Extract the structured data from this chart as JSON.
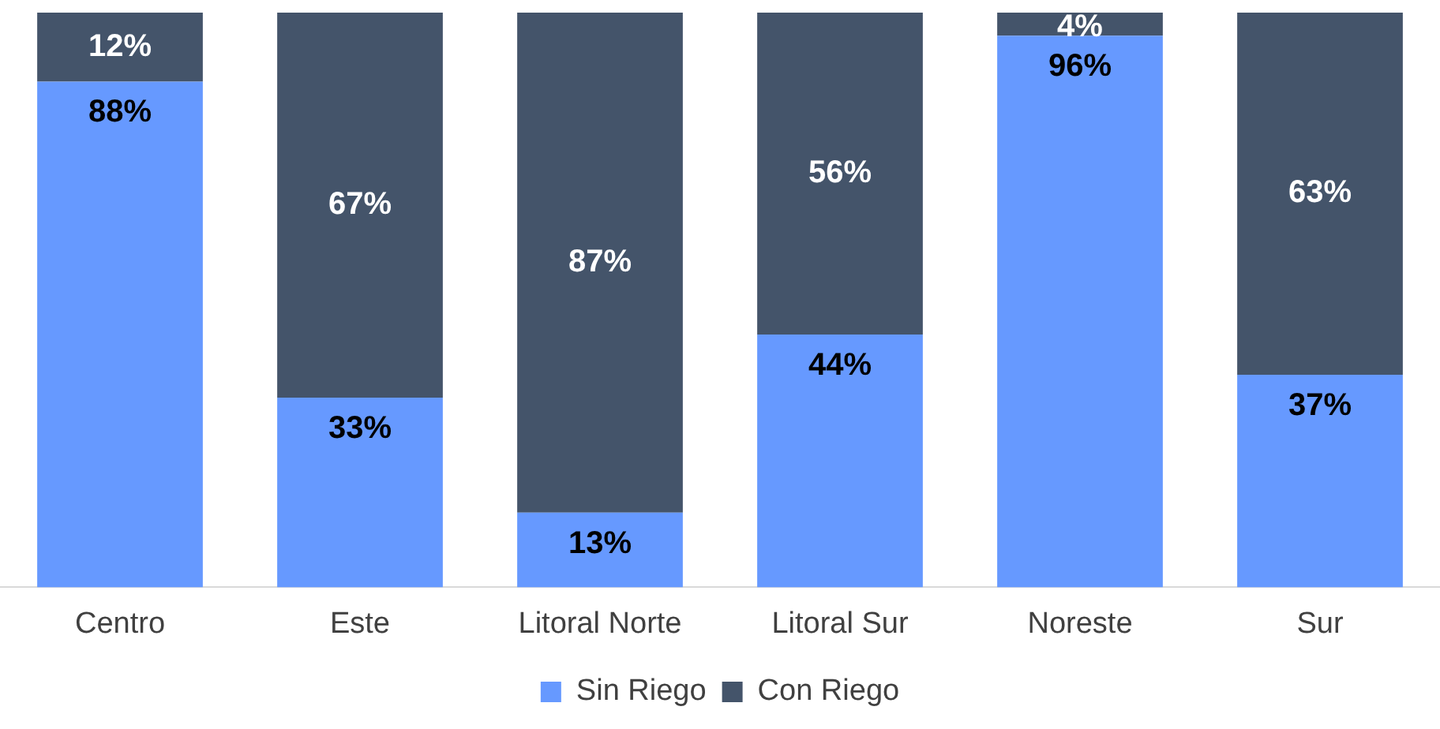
{
  "chart_data": {
    "type": "bar",
    "stacked": true,
    "categories": [
      "Centro",
      "Este",
      "Litoral Norte",
      "Litoral Sur",
      "Noreste",
      "Sur"
    ],
    "series": [
      {
        "name": "Sin Riego",
        "color": "#6699ff",
        "values": [
          88,
          33,
          13,
          44,
          96,
          37
        ],
        "value_labels": [
          "88%",
          "33%",
          "13%",
          "44%",
          "96%",
          "37%"
        ]
      },
      {
        "name": "Con Riego",
        "color": "#44546a",
        "values": [
          12,
          67,
          87,
          56,
          4,
          63
        ],
        "value_labels": [
          "12%",
          "67%",
          "87%",
          "56%",
          "4%",
          "63%"
        ]
      }
    ],
    "legend": "bottom",
    "grid": false
  }
}
